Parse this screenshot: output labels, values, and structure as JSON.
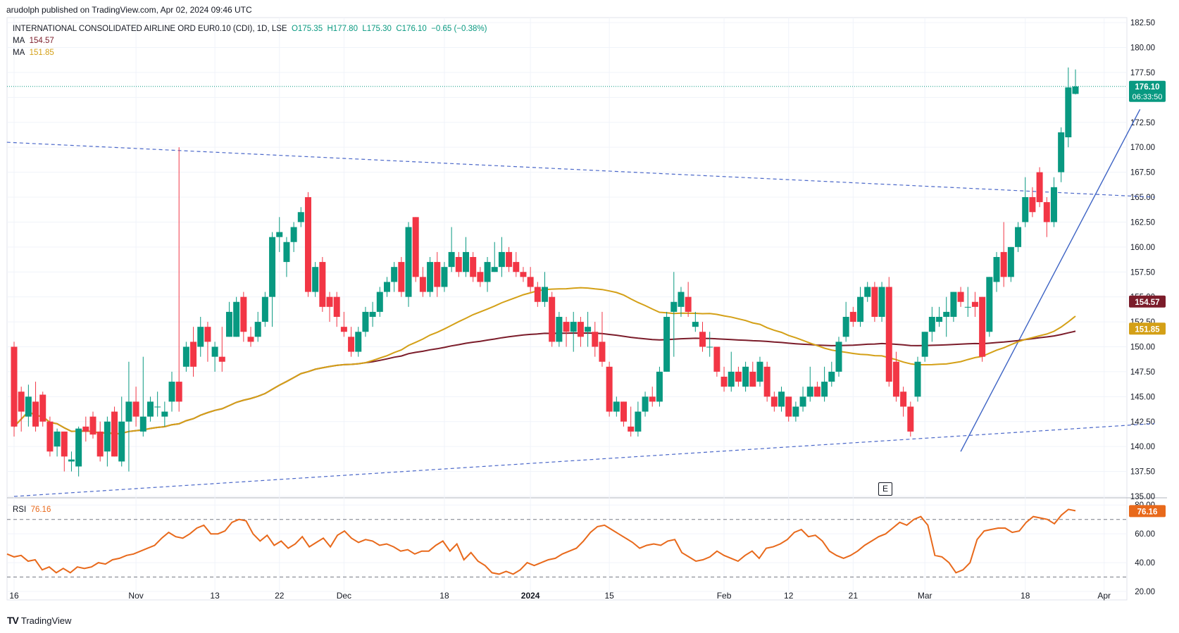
{
  "published": "arudolph published on TradingView.com, Apr 02, 2024 09:46 UTC",
  "legend": {
    "symbol": "INTERNATIONAL CONSOLIDATED AIRLINE ORD EUR0.10 (CDI), 1D, LSE",
    "open": "O175.35",
    "high": "H177.80",
    "low": "L175.30",
    "close": "C176.10",
    "change": "−0.65 (−0.38%)",
    "ma1_label": "MA",
    "ma1_value": "154.57",
    "ma2_label": "MA",
    "ma2_value": "151.85"
  },
  "rsi_legend": {
    "label": "RSI",
    "value": "76.16"
  },
  "footer": {
    "brand": "TradingView",
    "logo": "TV"
  },
  "event_marker": "E",
  "colors": {
    "up": "#089981",
    "down": "#f23645",
    "ma_long": "#7b1c2a",
    "ma_short": "#d4a017",
    "rsi": "#e8691b",
    "trend_dashed": "#4a67c9",
    "trend_solid": "#3d63c4",
    "grid": "#f0f3fa"
  },
  "chart_data": [
    {
      "type": "candlestick",
      "price_axis": [
        "182.50",
        "180.00",
        "177.50",
        "175.00",
        "172.50",
        "170.00",
        "167.50",
        "165.00",
        "162.50",
        "160.00",
        "157.50",
        "155.00",
        "152.50",
        "150.00",
        "147.50",
        "145.00",
        "142.50",
        "140.00",
        "137.50",
        "135.00"
      ],
      "ylim": [
        135,
        183
      ],
      "time_axis": [
        {
          "label": "16",
          "bold": false
        },
        {
          "label": "Nov",
          "bold": false
        },
        {
          "label": "13",
          "bold": false
        },
        {
          "label": "22",
          "bold": false
        },
        {
          "label": "Dec",
          "bold": false
        },
        {
          "label": "18",
          "bold": false
        },
        {
          "label": "2024",
          "bold": true
        },
        {
          "label": "15",
          "bold": false
        },
        {
          "label": "Feb",
          "bold": false
        },
        {
          "label": "12",
          "bold": false
        },
        {
          "label": "21",
          "bold": false
        },
        {
          "label": "Mar",
          "bold": false
        },
        {
          "label": "18",
          "bold": false
        },
        {
          "label": "Apr",
          "bold": false
        }
      ],
      "last_price": {
        "value": "176.10",
        "countdown": "06:33:50",
        "level": 176.1
      },
      "ma_long_tag": {
        "value": "154.57",
        "level": 154.57
      },
      "ma_short_tag": {
        "value": "151.85",
        "level": 151.85
      },
      "candles": [
        [
          150.0,
          142.0,
          150.5,
          141.0
        ],
        [
          145.5,
          143.5,
          146.0,
          141.5
        ],
        [
          143.0,
          145.0,
          146.2,
          142.0
        ],
        [
          144.5,
          142.0,
          146.5,
          141.5
        ],
        [
          145.2,
          142.5,
          145.5,
          142.0
        ],
        [
          142.5,
          139.5,
          143.0,
          139.0
        ],
        [
          140.0,
          141.5,
          141.8,
          139.0
        ],
        [
          141.5,
          139.0,
          141.5,
          137.5
        ],
        [
          138.5,
          138.7,
          139.5,
          137.5
        ],
        [
          138.0,
          141.8,
          142.0,
          137.0
        ],
        [
          142.0,
          141.5,
          143.0,
          140.5
        ],
        [
          143.0,
          141.2,
          143.5,
          140.8
        ],
        [
          141.5,
          139.0,
          142.5,
          138.5
        ],
        [
          139.5,
          142.5,
          143.0,
          138.0
        ],
        [
          143.5,
          139.0,
          144.0,
          139.0
        ],
        [
          138.5,
          142.5,
          145.0,
          138.0
        ],
        [
          142.5,
          144.5,
          148.5,
          137.5
        ],
        [
          144.5,
          143.0,
          146.0,
          142.0
        ],
        [
          141.5,
          143.0,
          149.0,
          141.0
        ],
        [
          143.0,
          144.5,
          145.0,
          142.5
        ],
        [
          144.0,
          144.0,
          145.5,
          143.0
        ],
        [
          143.0,
          143.5,
          144.5,
          142.0
        ],
        [
          144.5,
          146.5,
          147.5,
          143.5
        ],
        [
          146.5,
          144.5,
          170.0,
          143.5
        ],
        [
          148.0,
          150.0,
          150.5,
          147.5
        ],
        [
          150.5,
          148.0,
          152.0,
          147.0
        ],
        [
          150.0,
          152.0,
          153.0,
          149.0
        ],
        [
          152.0,
          150.5,
          152.5,
          148.5
        ],
        [
          149.0,
          150.0,
          150.5,
          147.5
        ],
        [
          149.0,
          148.5,
          152.0,
          147.5
        ],
        [
          151.0,
          153.5,
          154.5,
          151.0
        ],
        [
          151.0,
          154.5,
          155.0,
          151.0
        ],
        [
          155.0,
          151.5,
          155.5,
          150.5
        ],
        [
          151.0,
          150.5,
          152.0,
          150.0
        ],
        [
          151.0,
          152.5,
          153.5,
          150.5
        ],
        [
          152.5,
          155.0,
          155.5,
          152.0
        ],
        [
          155.0,
          161.0,
          161.5,
          152.0
        ],
        [
          161.0,
          161.5,
          163.0,
          159.5
        ],
        [
          158.5,
          160.5,
          161.0,
          157.0
        ],
        [
          160.5,
          162.0,
          162.5,
          159.5
        ],
        [
          162.5,
          163.5,
          164.0,
          162.0
        ],
        [
          165.0,
          155.5,
          165.5,
          155.0
        ],
        [
          155.5,
          158.0,
          158.5,
          155.0
        ],
        [
          158.5,
          154.0,
          159.0,
          153.5
        ],
        [
          155.0,
          154.0,
          155.5,
          152.5
        ],
        [
          155.0,
          153.0,
          155.5,
          152.0
        ],
        [
          152.0,
          151.5,
          153.5,
          151.0
        ],
        [
          151.0,
          149.5,
          152.0,
          149.0
        ],
        [
          149.5,
          151.5,
          152.0,
          149.0
        ],
        [
          151.5,
          153.5,
          154.0,
          151.0
        ],
        [
          153.0,
          153.5,
          154.5,
          152.0
        ],
        [
          153.5,
          155.5,
          156.0,
          153.0
        ],
        [
          155.5,
          156.5,
          157.0,
          155.0
        ],
        [
          156.5,
          158.0,
          158.5,
          155.5
        ],
        [
          158.5,
          155.5,
          159.0,
          155.0
        ],
        [
          155.0,
          162.0,
          162.5,
          154.0
        ],
        [
          163.0,
          157.0,
          163.0,
          156.5
        ],
        [
          157.0,
          155.5,
          158.0,
          155.0
        ],
        [
          155.5,
          158.5,
          159.0,
          155.0
        ],
        [
          158.5,
          156.0,
          159.5,
          155.0
        ],
        [
          156.0,
          158.0,
          158.5,
          155.5
        ],
        [
          158.0,
          159.5,
          162.0,
          157.5
        ],
        [
          159.0,
          157.5,
          159.5,
          157.0
        ],
        [
          157.5,
          159.5,
          161.0,
          157.0
        ],
        [
          159.0,
          157.0,
          159.5,
          156.5
        ],
        [
          157.5,
          156.5,
          158.0,
          156.0
        ],
        [
          156.5,
          158.5,
          159.0,
          155.5
        ],
        [
          157.5,
          158.0,
          160.5,
          157.5
        ],
        [
          158.0,
          159.5,
          161.0,
          157.0
        ],
        [
          159.5,
          158.0,
          160.0,
          157.5
        ],
        [
          158.5,
          157.5,
          159.5,
          157.0
        ],
        [
          157.5,
          157.0,
          158.0,
          156.5
        ],
        [
          157.0,
          156.0,
          158.0,
          155.5
        ],
        [
          156.0,
          154.5,
          156.5,
          154.0
        ],
        [
          154.5,
          156.0,
          157.5,
          154.0
        ],
        [
          155.0,
          150.5,
          155.5,
          150.0
        ],
        [
          150.5,
          153.0,
          153.5,
          150.0
        ],
        [
          152.5,
          151.5,
          153.0,
          150.0
        ],
        [
          151.5,
          152.5,
          153.5,
          149.5
        ],
        [
          152.5,
          151.0,
          153.0,
          150.0
        ],
        [
          151.5,
          152.0,
          153.5,
          150.0
        ],
        [
          151.5,
          150.0,
          152.5,
          149.0
        ],
        [
          150.5,
          148.5,
          153.5,
          148.0
        ],
        [
          148.0,
          143.5,
          148.5,
          143.0
        ],
        [
          143.5,
          144.5,
          145.0,
          143.0
        ],
        [
          144.5,
          142.5,
          144.5,
          142.0
        ],
        [
          142.0,
          141.5,
          144.0,
          141.0
        ],
        [
          141.5,
          143.5,
          144.5,
          141.0
        ],
        [
          143.5,
          145.0,
          145.5,
          143.0
        ],
        [
          145.0,
          144.5,
          146.0,
          144.0
        ],
        [
          144.5,
          147.5,
          148.0,
          144.0
        ],
        [
          147.5,
          153.0,
          153.5,
          147.5
        ],
        [
          153.5,
          154.5,
          157.5,
          149.0
        ],
        [
          154.0,
          155.5,
          156.0,
          153.0
        ],
        [
          155.0,
          153.5,
          156.5,
          153.0
        ],
        [
          152.0,
          152.5,
          153.5,
          151.5
        ],
        [
          151.5,
          150.0,
          152.5,
          149.5
        ],
        [
          150.0,
          150.0,
          151.5,
          149.0
        ],
        [
          150.0,
          147.5,
          150.0,
          147.0
        ],
        [
          147.0,
          146.0,
          148.0,
          145.5
        ],
        [
          146.0,
          147.5,
          149.5,
          145.5
        ],
        [
          147.5,
          146.5,
          148.0,
          146.0
        ],
        [
          146.0,
          148.0,
          148.5,
          145.5
        ],
        [
          147.5,
          146.0,
          148.5,
          146.0
        ],
        [
          146.5,
          148.5,
          149.0,
          146.0
        ],
        [
          148.0,
          145.0,
          148.5,
          144.5
        ],
        [
          145.0,
          144.0,
          145.5,
          143.5
        ],
        [
          144.0,
          145.5,
          146.0,
          143.5
        ],
        [
          145.0,
          143.0,
          145.0,
          142.5
        ],
        [
          143.0,
          144.0,
          144.5,
          142.5
        ],
        [
          144.0,
          145.0,
          146.0,
          143.5
        ],
        [
          145.0,
          146.0,
          148.0,
          144.5
        ],
        [
          146.0,
          145.0,
          146.5,
          145.0
        ],
        [
          145.0,
          146.5,
          148.0,
          144.5
        ],
        [
          146.5,
          147.5,
          148.5,
          146.0
        ],
        [
          147.5,
          150.5,
          151.0,
          147.0
        ],
        [
          151.0,
          153.0,
          154.5,
          150.5
        ],
        [
          153.5,
          152.5,
          154.0,
          152.0
        ],
        [
          152.5,
          155.0,
          156.0,
          152.0
        ],
        [
          155.0,
          156.0,
          156.5,
          154.5
        ],
        [
          156.0,
          153.0,
          156.5,
          152.5
        ],
        [
          153.0,
          156.0,
          156.5,
          152.5
        ],
        [
          156.0,
          146.5,
          157.0,
          146.0
        ],
        [
          148.5,
          145.0,
          149.5,
          144.5
        ],
        [
          145.5,
          144.0,
          146.0,
          143.0
        ],
        [
          144.0,
          141.5,
          144.5,
          141.0
        ],
        [
          145.0,
          148.5,
          149.0,
          144.5
        ],
        [
          149.0,
          151.5,
          151.5,
          148.5
        ],
        [
          151.5,
          153.0,
          154.0,
          150.5
        ],
        [
          152.5,
          153.0,
          154.0,
          152.0
        ],
        [
          153.0,
          153.5,
          155.0,
          151.0
        ],
        [
          153.0,
          155.5,
          155.5,
          152.5
        ],
        [
          155.5,
          154.5,
          156.0,
          154.0
        ],
        [
          154.0,
          154.0,
          156.0,
          153.0
        ],
        [
          154.5,
          154.0,
          155.5,
          153.0
        ],
        [
          155.0,
          149.0,
          155.0,
          148.5
        ],
        [
          151.5,
          157.0,
          157.0,
          151.0
        ],
        [
          156.5,
          159.0,
          159.5,
          155.5
        ],
        [
          159.5,
          157.0,
          162.5,
          156.0
        ],
        [
          157.0,
          160.0,
          160.0,
          156.5
        ],
        [
          160.0,
          162.0,
          162.5,
          159.5
        ],
        [
          162.5,
          165.0,
          167.0,
          162.0
        ],
        [
          165.0,
          163.5,
          166.0,
          163.0
        ],
        [
          167.5,
          164.5,
          168.0,
          164.0
        ],
        [
          164.5,
          162.5,
          165.0,
          161.0
        ],
        [
          162.5,
          166.0,
          167.0,
          162.0
        ],
        [
          167.5,
          171.5,
          172.0,
          166.5
        ],
        [
          171.0,
          176.0,
          178.0,
          170.0
        ],
        [
          175.35,
          176.1,
          177.8,
          175.3
        ]
      ]
    },
    {
      "type": "line",
      "title": "RSI",
      "value": "76.16",
      "ylabels": [
        "80.00",
        "60.00",
        "40.00",
        "20.00"
      ],
      "ylim": [
        20,
        85
      ],
      "bands": [
        70,
        30
      ],
      "values": [
        46,
        44,
        45,
        41,
        42,
        35,
        37,
        33,
        36,
        33,
        37,
        36,
        37,
        40,
        39,
        42,
        43,
        45,
        46,
        48,
        50,
        52,
        57,
        61,
        58,
        57,
        60,
        64,
        66,
        60,
        60,
        62,
        68,
        70,
        69,
        60,
        55,
        59,
        52,
        55,
        50,
        53,
        58,
        51,
        54,
        57,
        51,
        59,
        62,
        57,
        54,
        56,
        55,
        52,
        53,
        51,
        48,
        49,
        46,
        48,
        48,
        52,
        55,
        48,
        53,
        42,
        47,
        41,
        38,
        33,
        32,
        34,
        32,
        35,
        40,
        38,
        40,
        42,
        43,
        46,
        48,
        50,
        55,
        61,
        65,
        66,
        63,
        60,
        57,
        54,
        50,
        52,
        53,
        52,
        55,
        56,
        47,
        44,
        41,
        42,
        44,
        48,
        45,
        43,
        41,
        45,
        48,
        43,
        50,
        51,
        53,
        56,
        61,
        63,
        58,
        59,
        55,
        48,
        45,
        43,
        45,
        48,
        52,
        55,
        58,
        60,
        64,
        68,
        66,
        70,
        72,
        66,
        45,
        44,
        40,
        33,
        35,
        40,
        56,
        62,
        63,
        64,
        64,
        61,
        62,
        68,
        72,
        71,
        70,
        67,
        73,
        77,
        76
      ]
    }
  ]
}
